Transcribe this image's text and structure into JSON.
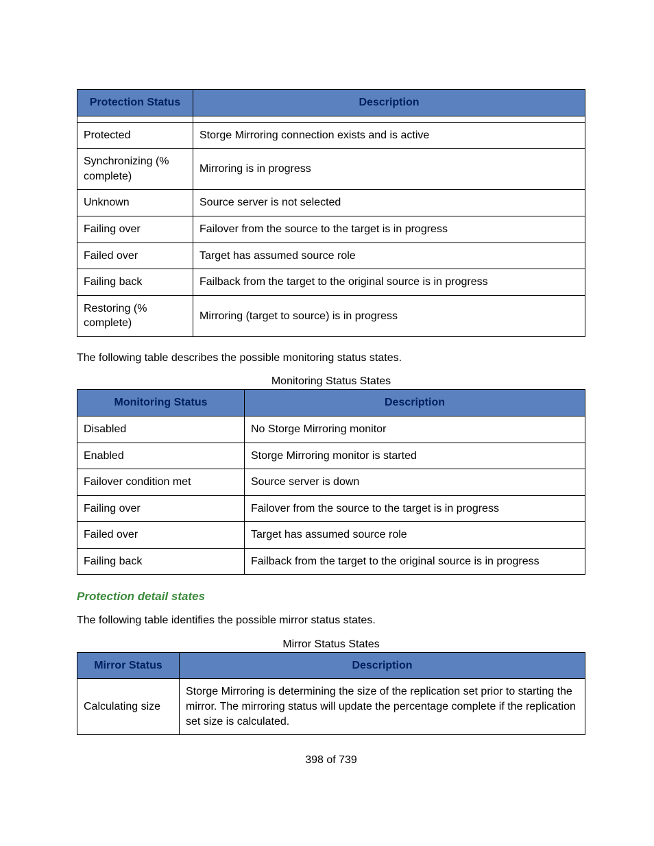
{
  "protection": {
    "columns": [
      "Protection Status",
      "Description"
    ],
    "rows": [
      [
        "Protected",
        "Storge Mirroring connection exists and is active"
      ],
      [
        "Synchronizing (% complete)",
        "Mirroring is in progress"
      ],
      [
        "Unknown",
        "Source server is not selected"
      ],
      [
        "Failing over",
        "Failover from the source to the target is in progress"
      ],
      [
        "Failed over",
        "Target has assumed source role"
      ],
      [
        "Failing back",
        "Failback from the target to the original source is in progress"
      ],
      [
        "Restoring (% complete)",
        "Mirroring (target to source) is in progress"
      ]
    ]
  },
  "monitoring_intro": "The following table describes the possible monitoring status states.",
  "monitoring_caption": "Monitoring Status States",
  "monitoring": {
    "columns": [
      "Monitoring Status",
      "Description"
    ],
    "rows": [
      [
        "Disabled",
        "No Storge Mirroring monitor"
      ],
      [
        "Enabled",
        "Storge Mirroring monitor is started"
      ],
      [
        "Failover condition met",
        "Source server is down"
      ],
      [
        "Failing over",
        "Failover from the source to the target is in progress"
      ],
      [
        "Failed over",
        "Target has assumed source role"
      ],
      [
        "Failing back",
        "Failback from the target to the original source is in progress"
      ]
    ]
  },
  "detail_heading": "Protection detail states",
  "mirror_intro": "The following table identifies the possible mirror status states.",
  "mirror_caption": "Mirror Status States",
  "mirror": {
    "columns": [
      "Mirror Status",
      "Description"
    ],
    "rows": [
      [
        "Calculating size",
        "Storge Mirroring is determining the size of the replication set prior to starting the mirror. The mirroring status will update the percentage complete if the replication set size is calculated."
      ]
    ]
  },
  "footer": "398 of 739",
  "colors": {
    "header_bg": "#5b82bf",
    "header_text": "#002060",
    "section_heading": "#3c8a3c"
  }
}
